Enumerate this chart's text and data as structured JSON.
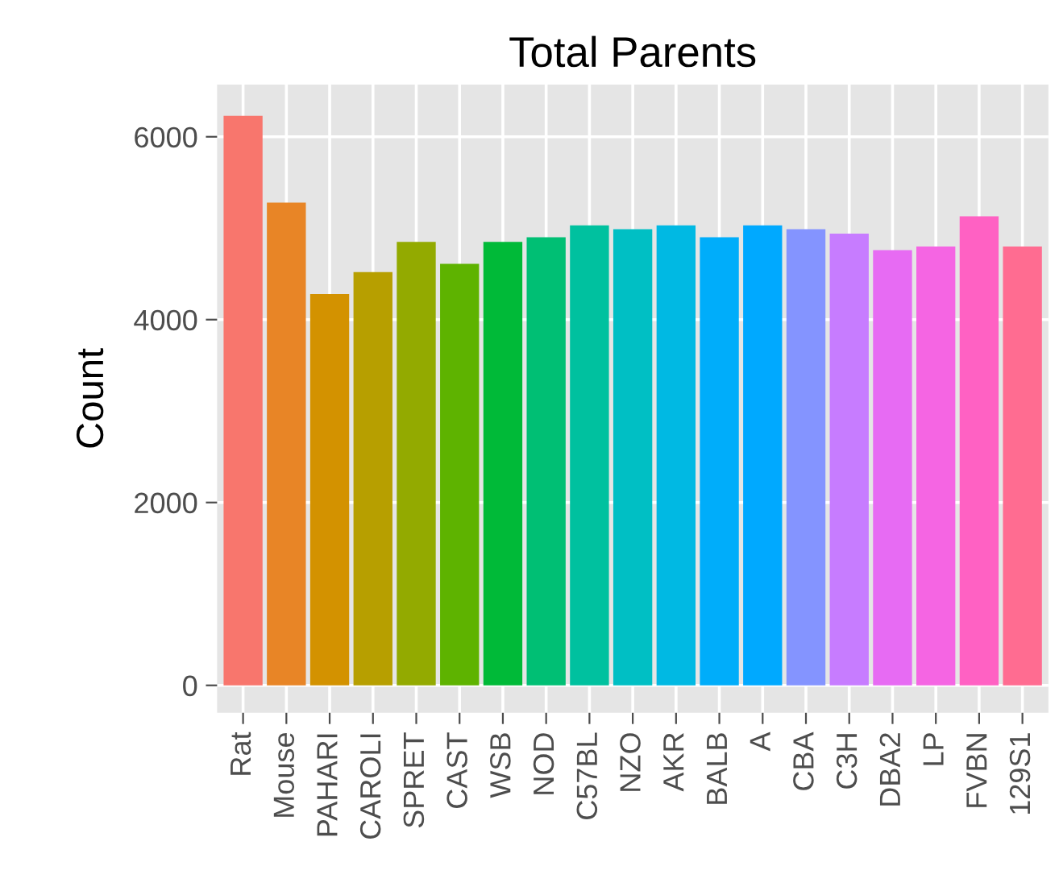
{
  "chart_data": {
    "type": "bar",
    "title": "Total Parents",
    "ylabel": "Count",
    "categories": [
      "Rat",
      "Mouse",
      "PAHARI",
      "CAROLI",
      "SPRET",
      "CAST",
      "WSB",
      "NOD",
      "C57BL",
      "NZO",
      "AKR",
      "BALB",
      "A",
      "CBA",
      "C3H",
      "DBA2",
      "LP",
      "FVBN",
      "129S1"
    ],
    "values": [
      6230,
      5280,
      4280,
      4520,
      4850,
      4610,
      4850,
      4900,
      5030,
      4990,
      5030,
      4900,
      5030,
      4990,
      4940,
      4760,
      4800,
      5130,
      4800
    ],
    "colors": [
      "#f8766d",
      "#e88526",
      "#d39200",
      "#b79f00",
      "#93aa00",
      "#5eb300",
      "#00ba38",
      "#00bf74",
      "#00c19f",
      "#00bfc4",
      "#00b9e3",
      "#00adfa",
      "#00a9ff",
      "#8494ff",
      "#c77cff",
      "#e76bf3",
      "#f565e3",
      "#ff61c3",
      "#ff6c91"
    ],
    "ylim": [
      -300,
      6570
    ],
    "yticks": [
      0,
      2000,
      4000,
      6000
    ],
    "grid": true
  }
}
